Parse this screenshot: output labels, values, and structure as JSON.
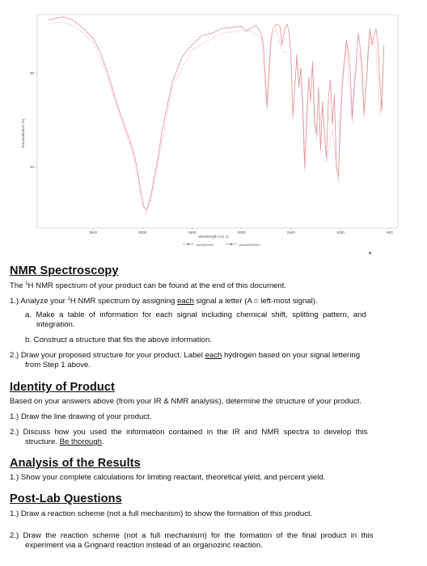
{
  "spectrum": {
    "y_axis_label": "Transmittance (%)",
    "y_ticks": [
      "80",
      "40"
    ],
    "x_ticks": [
      "3500",
      "3000",
      "2500",
      "2000",
      "1500",
      "1000",
      "500"
    ],
    "x_axis_label": "Wavelength (cm-1)",
    "legend": [
      "pamphlover",
      "pampSelected"
    ],
    "line_color": "#e39aa3"
  },
  "chart_data": {
    "type": "line",
    "x_tick_labels": [
      "3500",
      "3000",
      "2500",
      "2000",
      "1500",
      "1000",
      "500"
    ],
    "y_tick_labels": [
      "80",
      "40"
    ],
    "xlabel": "Wavelength (cm-1)",
    "ylabel": "Transmittance (%)",
    "legend_placement": "bottom-center",
    "grid": false,
    "series": [
      {
        "name": "pamphlover",
        "x": [
          3950,
          3875,
          3800,
          3720,
          3650,
          3600,
          3550,
          3500,
          3450,
          3400,
          3350,
          3300,
          3250,
          3200,
          3150,
          3100,
          3060,
          3020,
          2990,
          2960,
          2940,
          2920,
          2900,
          2880,
          2850,
          2800,
          2700,
          2600,
          2500,
          2400,
          2300,
          2200,
          2100,
          2000,
          1950,
          1900,
          1850,
          1800,
          1780,
          1760,
          1740,
          1720,
          1700,
          1680,
          1650,
          1610,
          1590,
          1560,
          1540,
          1520,
          1500,
          1480,
          1460,
          1440,
          1420,
          1400,
          1380,
          1360,
          1340,
          1320,
          1300,
          1280,
          1260,
          1240,
          1220,
          1200,
          1180,
          1160,
          1140,
          1120,
          1100,
          1080,
          1060,
          1040,
          1020,
          1000,
          980,
          960,
          940,
          920,
          900,
          880,
          860,
          840,
          820,
          800,
          780,
          760,
          740,
          720,
          700,
          680,
          660,
          640,
          620,
          600,
          580,
          560
        ],
        "y": [
          102.5,
          103.5,
          104,
          103,
          101,
          99,
          97,
          95,
          91,
          86,
          80,
          73,
          66,
          60,
          54,
          48,
          41,
          31,
          23,
          22,
          24,
          27,
          31,
          36,
          42,
          56,
          76,
          87,
          92,
          96,
          97,
          99,
          99.5,
          100,
          98,
          99.5,
          100.5,
          97,
          93,
          80,
          66,
          82,
          95,
          99,
          101,
          100,
          92,
          99,
          101,
          98,
          89,
          62,
          74,
          88,
          74,
          82,
          68,
          40,
          60,
          78,
          68,
          85,
          58,
          54,
          74,
          47,
          68,
          54,
          44,
          70,
          77,
          58,
          71,
          40,
          36,
          60,
          76,
          85,
          94,
          90,
          81,
          61,
          75,
          84,
          97,
          91,
          83,
          63,
          74,
          89,
          99,
          92,
          96,
          99,
          93,
          76,
          64,
          92
        ]
      },
      {
        "name": "pampSelected",
        "x": [
          3950,
          3800,
          3650,
          3500,
          3400,
          3300,
          3200,
          3100,
          3020,
          2960,
          2900,
          2850,
          2700,
          2500,
          2200,
          2000,
          1900,
          1800,
          1740,
          1700,
          1650,
          1590,
          1500,
          1480,
          1440,
          1400,
          1360,
          1320,
          1280,
          1240,
          1180,
          1140,
          1080,
          1020,
          980,
          940,
          880,
          840,
          800,
          760,
          700,
          640,
          600,
          560
        ],
        "y": [
          101,
          102,
          99,
          93,
          84,
          71,
          58,
          46,
          29,
          20,
          29,
          40,
          74,
          90,
          97,
          98,
          98,
          95,
          64,
          93,
          99,
          90,
          87,
          60,
          86,
          80,
          38,
          76,
          83,
          52,
          66,
          42,
          56,
          34,
          74,
          92,
          59,
          82,
          89,
          61,
          97,
          91,
          62,
          90
        ]
      }
    ]
  },
  "nmr": {
    "heading": "NMR Spectroscopy",
    "intro_pre": "The ",
    "intro_sup": "1",
    "intro_post": "H NMR spectrum of your product can be found at the end of this document.",
    "q1_pre": "1.) Analyze your ",
    "q1_sup": "1",
    "q1_mid": "H NMR spectrum by assigning ",
    "q1_underline": "each",
    "q1_post": " signal a letter (A = left-most signal).",
    "qa_l1": "a.  Make  a  table  of  information  for  each  signal  including  chemical  shift,  splitting  pattern,  and",
    "qa_l2": "integration.",
    "qb": "b.  Construct a structure that fits the above information.",
    "q2_pre": "2.) Draw your proposed structure for your product. Label ",
    "q2_underline": "each",
    "q2_post": " hydrogen based on your signal lettering",
    "q2_l2": "from Step 1 above."
  },
  "identity": {
    "heading": "Identity of Product",
    "intro": "Based on your answers above (from your IR & NMR analysis), determine the structure of your product.",
    "q1": "1.) Draw the line drawing of your product.",
    "q2_l1": "2.)  Discuss  how  you  used  the  information  contained  in  the  IR  and  NMR  spectra  to  develop  this",
    "q2_l2_pre": "structure. ",
    "q2_l2_underline": "Be thorough",
    "q2_l2_post": "."
  },
  "analysis": {
    "heading": "Analysis of the Results",
    "q1": "1.) Show your complete calculations for limiting reactant, theoretical yield, and percent yield."
  },
  "postlab": {
    "heading": "Post-Lab Questions",
    "q1": "1.) Draw a reaction scheme (not a full mechanism) to show the formation of this product.",
    "q2_l1": "2.)  Draw  the  reaction  scheme  (not  a  full  mechanism)  for  the  formation  of  the  final  product  in  this",
    "q2_l2": "experiment via a Grignard reaction instead of an organozinc reaction."
  }
}
